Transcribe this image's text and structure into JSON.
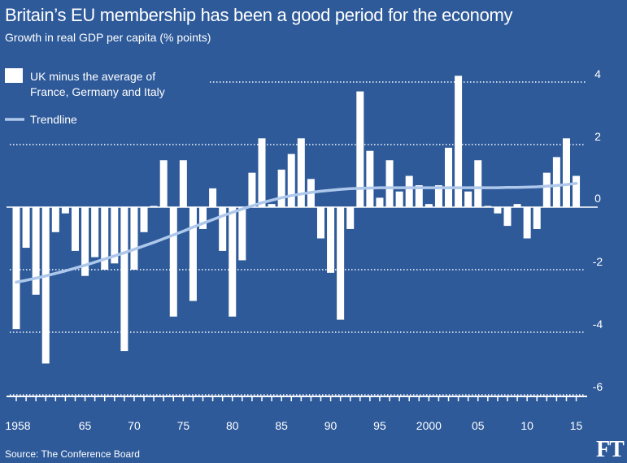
{
  "header": {
    "title": "Britain’s EU membership has been a good period for the economy",
    "subtitle": "Growth in real GDP per capita (% points)"
  },
  "footer": {
    "source": "Source: The Conference Board",
    "logo": "FT"
  },
  "colors": {
    "background": "#2e5a9a",
    "bars": "#ffffff",
    "trendline": "#aec8ec",
    "grid": "#ffffff"
  },
  "chart_data": {
    "type": "bar",
    "title": "Britain’s EU membership has been a good period for the economy",
    "subtitle": "Growth in real GDP per capita (% points)",
    "xlabel": "",
    "ylabel": "",
    "ylim": [
      -6,
      4.4
    ],
    "yticks": [
      4,
      2,
      0,
      -2,
      -4,
      -6
    ],
    "ytick_labels": [
      "4",
      "2",
      "0",
      "-2",
      "-4",
      "-6"
    ],
    "xtick_labels": [
      {
        "year": 1958,
        "label": "1958"
      },
      {
        "year": 1965,
        "label": "65"
      },
      {
        "year": 1970,
        "label": "70"
      },
      {
        "year": 1975,
        "label": "75"
      },
      {
        "year": 1980,
        "label": "80"
      },
      {
        "year": 1985,
        "label": "85"
      },
      {
        "year": 1990,
        "label": "90"
      },
      {
        "year": 1995,
        "label": "95"
      },
      {
        "year": 2000,
        "label": "2000"
      },
      {
        "year": 2005,
        "label": "05"
      },
      {
        "year": 2010,
        "label": "10"
      },
      {
        "year": 2015,
        "label": "15"
      }
    ],
    "grid": "dotted horizontal",
    "legend": [
      {
        "label": "UK minus the average of\nFrance, Germany and Italy",
        "kind": "bar"
      },
      {
        "label": "Trendline",
        "kind": "line"
      }
    ],
    "years": [
      1958,
      1959,
      1960,
      1961,
      1962,
      1963,
      1964,
      1965,
      1966,
      1967,
      1968,
      1969,
      1970,
      1971,
      1972,
      1973,
      1974,
      1975,
      1976,
      1977,
      1978,
      1979,
      1980,
      1981,
      1982,
      1983,
      1984,
      1985,
      1986,
      1987,
      1988,
      1989,
      1990,
      1991,
      1992,
      1993,
      1994,
      1995,
      1996,
      1997,
      1998,
      1999,
      2000,
      2001,
      2002,
      2003,
      2004,
      2005,
      2006,
      2007,
      2008,
      2009,
      2010,
      2011,
      2012,
      2013,
      2014,
      2015
    ],
    "series": [
      {
        "name": "UK minus the average of France, Germany and Italy",
        "values": [
          -3.9,
          -1.3,
          -2.8,
          -5.0,
          -0.8,
          -0.2,
          -1.4,
          -2.2,
          -1.6,
          -2.0,
          -1.8,
          -4.6,
          -2.0,
          -0.8,
          0.0,
          1.5,
          -3.5,
          1.5,
          -3.0,
          -0.7,
          0.6,
          -1.4,
          -3.5,
          -1.7,
          1.1,
          2.2,
          0.1,
          1.2,
          1.7,
          2.2,
          0.9,
          -1.0,
          -2.1,
          -3.6,
          -0.7,
          3.7,
          1.8,
          0.3,
          1.5,
          0.5,
          1.0,
          0.7,
          0.1,
          0.7,
          1.9,
          4.2,
          0.5,
          1.5,
          0.0,
          -0.2,
          -0.6,
          0.1,
          -1.0,
          -0.7,
          1.1,
          1.6,
          2.2,
          1.0
        ]
      },
      {
        "name": "Trendline",
        "values": [
          -2.4,
          -2.34,
          -2.27,
          -2.2,
          -2.12,
          -2.04,
          -1.95,
          -1.86,
          -1.76,
          -1.66,
          -1.56,
          -1.46,
          -1.35,
          -1.24,
          -1.13,
          -1.01,
          -0.89,
          -0.77,
          -0.64,
          -0.52,
          -0.4,
          -0.28,
          -0.17,
          -0.06,
          0.04,
          0.14,
          0.22,
          0.3,
          0.37,
          0.42,
          0.47,
          0.51,
          0.54,
          0.57,
          0.59,
          0.6,
          0.61,
          0.62,
          0.62,
          0.62,
          0.62,
          0.62,
          0.62,
          0.62,
          0.62,
          0.62,
          0.62,
          0.62,
          0.62,
          0.62,
          0.63,
          0.63,
          0.64,
          0.65,
          0.67,
          0.69,
          0.72,
          0.76
        ]
      }
    ]
  }
}
